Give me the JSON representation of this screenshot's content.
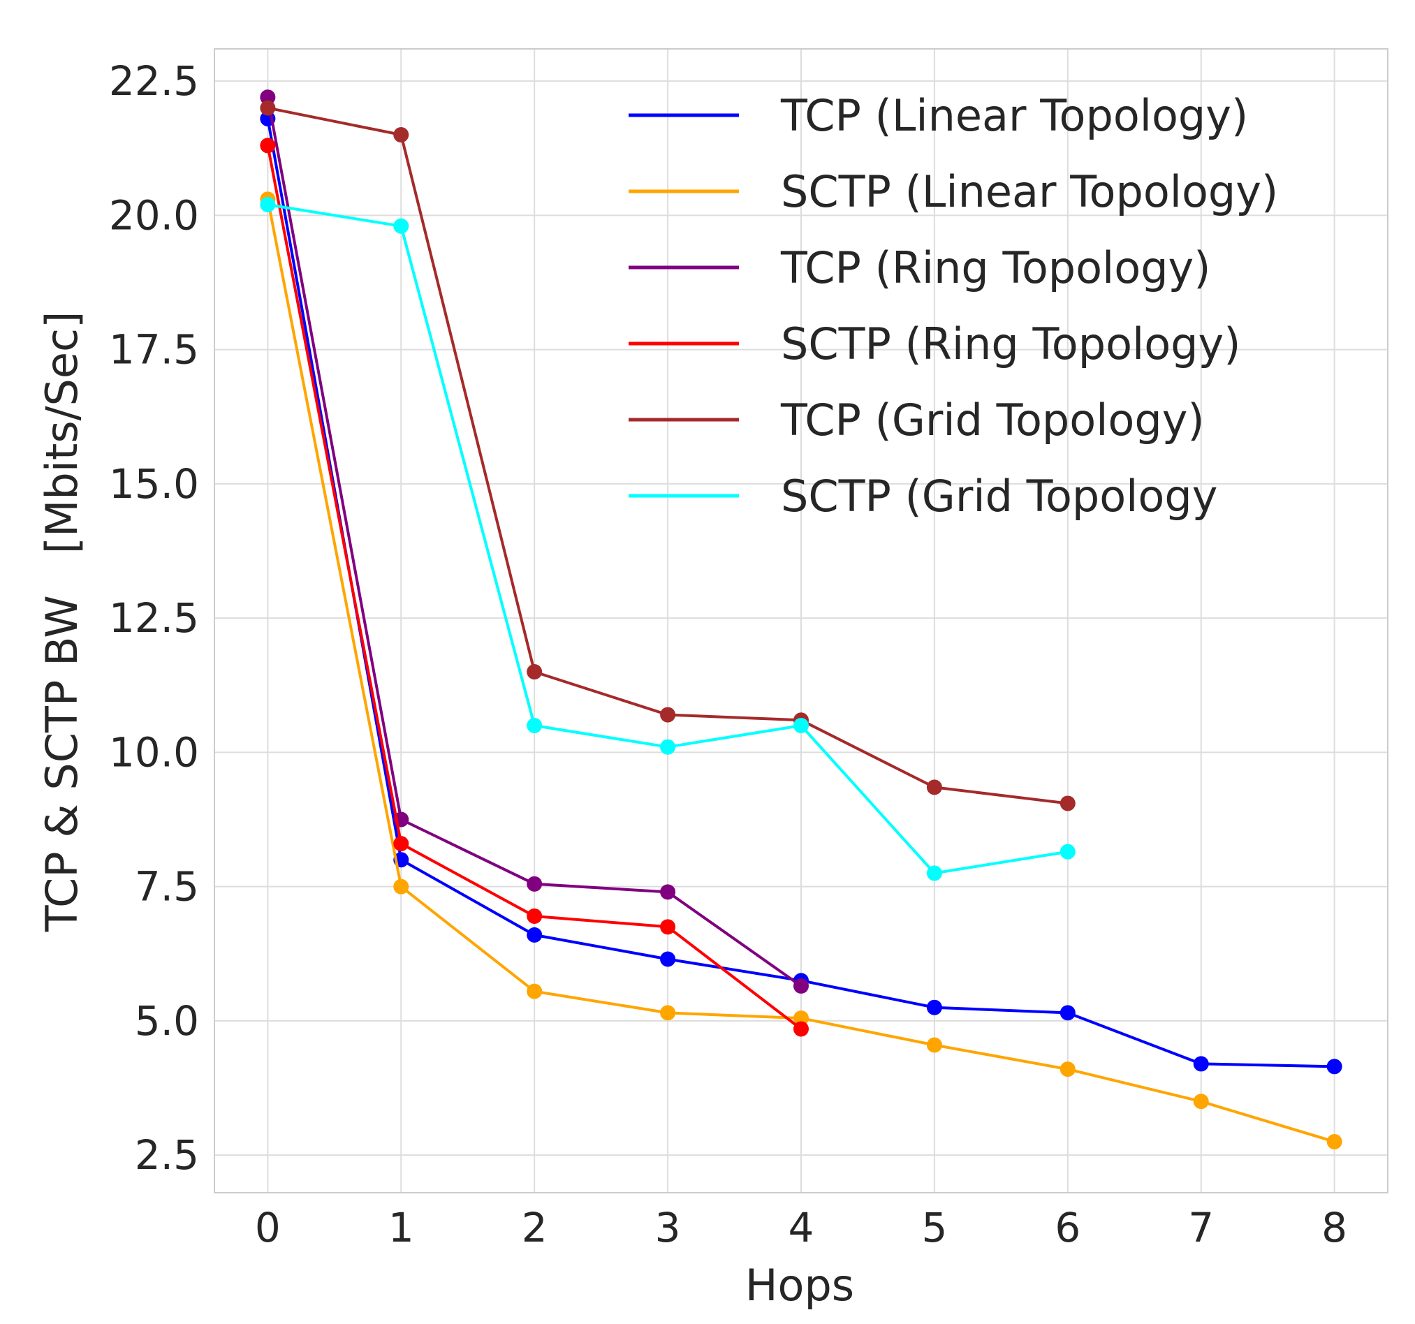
{
  "chart_data": {
    "type": "line",
    "title": "",
    "xlabel": "Hops",
    "ylabel": "TCP & SCTP BW   [Mbits/Sec]",
    "xlim": [
      -0.4,
      8.4
    ],
    "ylim": [
      1.8,
      23.1
    ],
    "xticks": [
      "0",
      "1",
      "2",
      "3",
      "4",
      "5",
      "6",
      "7",
      "8"
    ],
    "yticks": [
      "2.5",
      "5.0",
      "7.5",
      "10.0",
      "12.5",
      "15.0",
      "17.5",
      "20.0",
      "22.5"
    ],
    "grid": true,
    "legend_position": "top-right",
    "series": [
      {
        "name": "TCP (Linear Topology)",
        "color": "#0000ff",
        "x": [
          0,
          1,
          2,
          3,
          4,
          5,
          6,
          7,
          8
        ],
        "values": [
          21.8,
          8.0,
          6.6,
          6.15,
          5.75,
          5.25,
          5.15,
          4.2,
          4.15
        ]
      },
      {
        "name": "SCTP (Linear Topology)",
        "color": "#ffa500",
        "x": [
          0,
          1,
          2,
          3,
          4,
          5,
          6,
          7,
          8
        ],
        "values": [
          20.3,
          7.5,
          5.55,
          5.15,
          5.05,
          4.55,
          4.1,
          3.5,
          2.75
        ]
      },
      {
        "name": "TCP (Ring Topology)",
        "color": "#800080",
        "x": [
          0,
          1,
          2,
          3,
          4
        ],
        "values": [
          22.2,
          8.75,
          7.55,
          7.4,
          5.65
        ]
      },
      {
        "name": "SCTP (Ring Topology)",
        "color": "#ff0000",
        "x": [
          0,
          1,
          2,
          3,
          4
        ],
        "values": [
          21.3,
          8.3,
          6.95,
          6.75,
          4.85
        ]
      },
      {
        "name": "TCP (Grid Topology)",
        "color": "#a52a2a",
        "x": [
          0,
          1,
          2,
          3,
          4,
          5,
          6
        ],
        "values": [
          22.0,
          21.5,
          11.5,
          10.7,
          10.6,
          9.35,
          9.05
        ]
      },
      {
        "name": "SCTP (Grid Topology",
        "color": "#00ffff",
        "x": [
          0,
          1,
          2,
          3,
          4,
          5,
          6
        ],
        "values": [
          20.2,
          19.8,
          10.5,
          10.1,
          10.5,
          7.75,
          8.15
        ]
      }
    ]
  }
}
